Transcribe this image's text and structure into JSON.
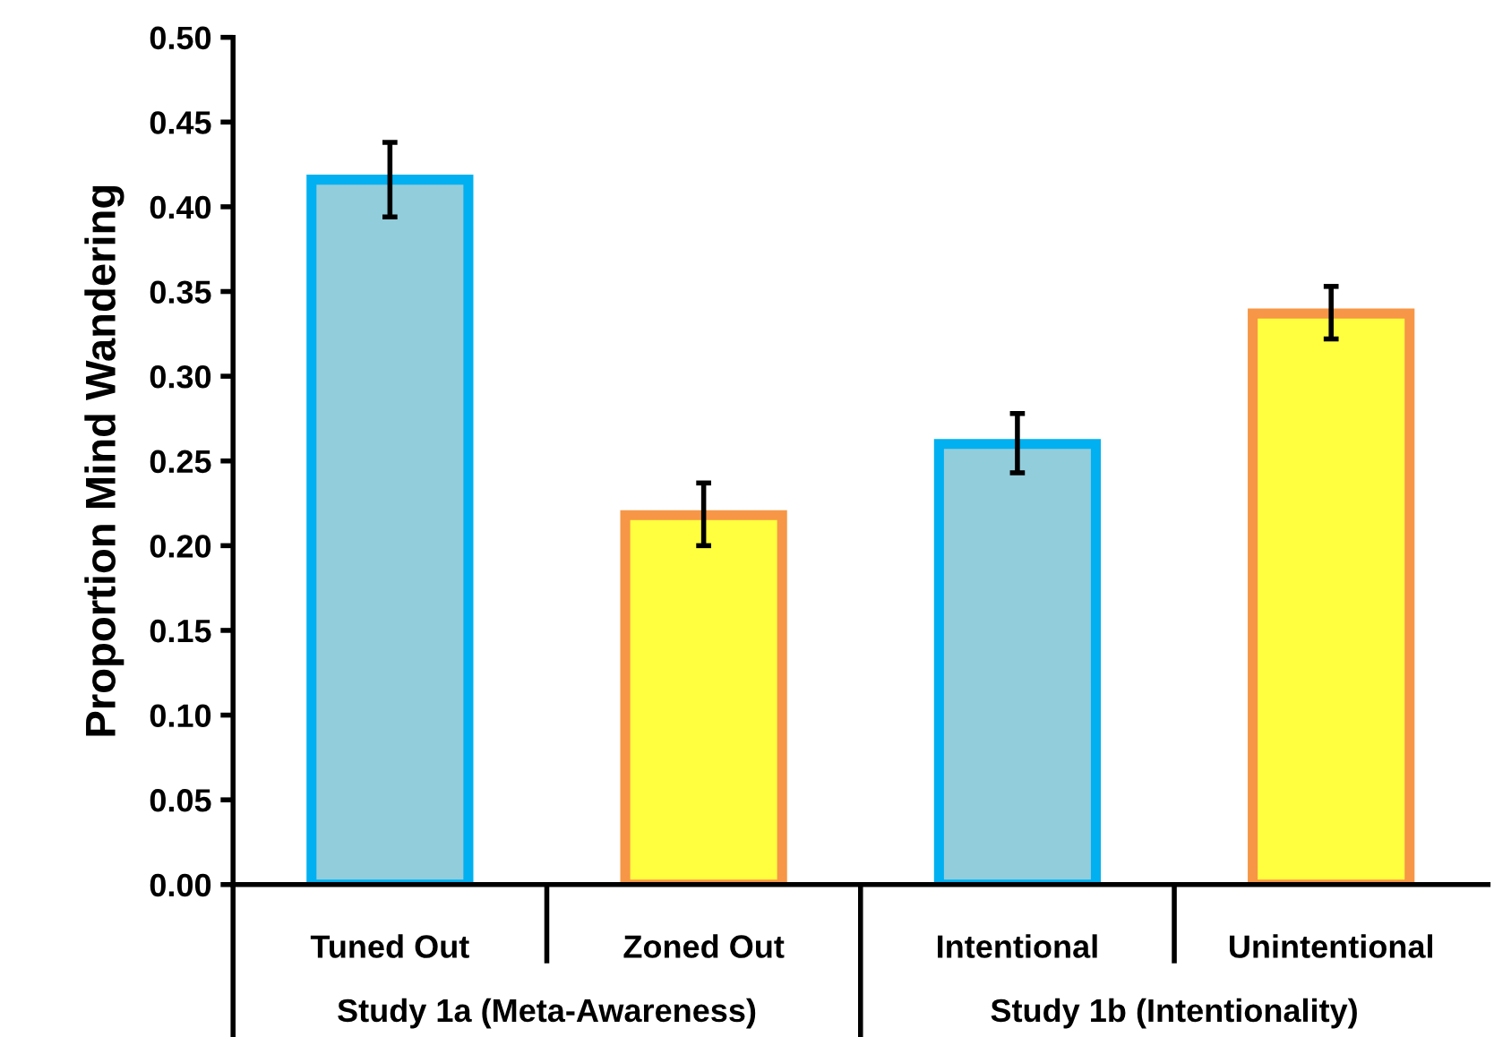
{
  "chart_data": {
    "type": "bar",
    "ylabel": "Proportion Mind Wandering",
    "categories": [
      "Tuned Out",
      "Zoned Out",
      "Intentional",
      "Unintentional"
    ],
    "values": [
      0.416,
      0.218,
      0.26,
      0.337
    ],
    "errors": [
      [
        0.394,
        0.438
      ],
      [
        0.2,
        0.237
      ],
      [
        0.243,
        0.278
      ],
      [
        0.322,
        0.353
      ]
    ],
    "colors": [
      "#92cddc",
      "#ffff3f",
      "#92cddc",
      "#ffff3f"
    ],
    "annotations": [
      "Study 1a (Meta-Awareness)",
      "Study 1b (Intentionality)"
    ],
    "ylim": [
      0,
      0.5
    ],
    "yticks": [
      {
        "value": 0,
        "label": "0.00"
      },
      {
        "value": 0.05,
        "label": "0.05"
      },
      {
        "value": 0.1,
        "label": "0.10"
      },
      {
        "value": 0.15,
        "label": "0.15"
      },
      {
        "value": 0.2,
        "label": "0.20"
      },
      {
        "value": 0.25,
        "label": "0.25"
      },
      {
        "value": 0.3,
        "label": "0.30"
      },
      {
        "value": 0.35,
        "label": "0.35"
      },
      {
        "value": 0.4,
        "label": "0.40"
      },
      {
        "value": 0.45,
        "label": "0.45"
      },
      {
        "value": 0.5,
        "label": "0.50"
      }
    ],
    "grid": false
  }
}
